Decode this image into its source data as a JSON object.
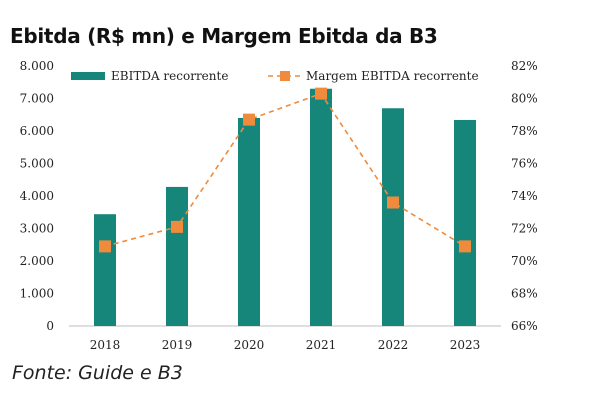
{
  "title": "Ebitda (R$ mn) e Margem Ebitda da B3",
  "source": "Fonte: Guide e B3",
  "colors": {
    "bar": "#17867a",
    "line": "#f08a3c",
    "axis": "#bfbfbf",
    "text": "#222222"
  },
  "chart_data": {
    "type": "bar",
    "categories": [
      "2018",
      "2019",
      "2020",
      "2021",
      "2022",
      "2023"
    ],
    "series": [
      {
        "name": "EBITDA recorrente",
        "type": "bar",
        "axis": "left",
        "values": [
          3440,
          4280,
          6400,
          7300,
          6700,
          6340
        ]
      },
      {
        "name": "Margem EBITDA recorrente",
        "type": "line",
        "style": "dashed",
        "marker": "square",
        "axis": "right",
        "values": [
          70.9,
          72.1,
          78.7,
          80.3,
          73.6,
          70.9
        ]
      }
    ],
    "y_left": {
      "min": 0,
      "max": 8000,
      "ticks": [
        0,
        1000,
        2000,
        3000,
        4000,
        5000,
        6000,
        7000,
        8000
      ],
      "tick_labels": [
        "0",
        "1.000",
        "2.000",
        "3.000",
        "4.000",
        "5.000",
        "6.000",
        "7.000",
        "8.000"
      ]
    },
    "y_right": {
      "min": 66,
      "max": 82,
      "ticks": [
        66,
        68,
        70,
        72,
        74,
        76,
        78,
        80,
        82
      ],
      "tick_labels": [
        "66%",
        "68%",
        "70%",
        "72%",
        "74%",
        "76%",
        "78%",
        "80%",
        "82%"
      ]
    },
    "legend": {
      "position": "top",
      "entries": [
        "EBITDA recorrente",
        "Margem EBITDA recorrente"
      ]
    },
    "grid": false
  }
}
